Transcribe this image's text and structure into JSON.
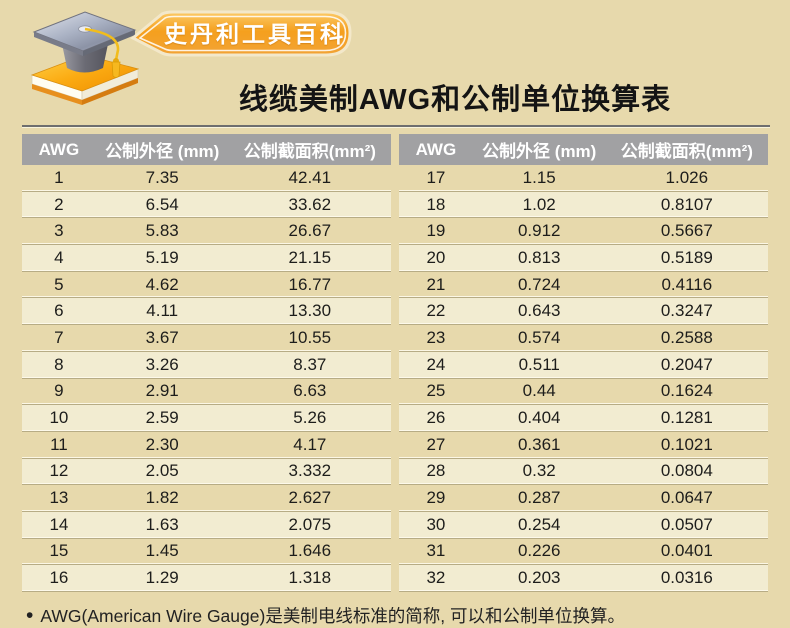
{
  "page": {
    "background_color": "#e7d9ac",
    "header_row_color": "#a1a1a3",
    "alt_row_color": "#f2ecd1",
    "badge_orange": "#f5a01e"
  },
  "header": {
    "brand_badge": "史丹利工具百科",
    "title": "线缆美制AWG和公制单位换算表",
    "logo": "book-with-graduation-cap-logo"
  },
  "columns": [
    "AWG",
    "公制外径 (mm)",
    "公制截面积(mm²)"
  ],
  "tables": [
    {
      "rows": [
        [
          "1",
          "7.35",
          "42.41"
        ],
        [
          "2",
          "6.54",
          "33.62"
        ],
        [
          "3",
          "5.83",
          "26.67"
        ],
        [
          "4",
          "5.19",
          "21.15"
        ],
        [
          "5",
          "4.62",
          "16.77"
        ],
        [
          "6",
          "4.11",
          "13.30"
        ],
        [
          "7",
          "3.67",
          "10.55"
        ],
        [
          "8",
          "3.26",
          "8.37"
        ],
        [
          "9",
          "2.91",
          "6.63"
        ],
        [
          "10",
          "2.59",
          "5.26"
        ],
        [
          "11",
          "2.30",
          "4.17"
        ],
        [
          "12",
          "2.05",
          "3.332"
        ],
        [
          "13",
          "1.82",
          "2.627"
        ],
        [
          "14",
          "1.63",
          "2.075"
        ],
        [
          "15",
          "1.45",
          "1.646"
        ],
        [
          "16",
          "1.29",
          "1.318"
        ]
      ]
    },
    {
      "rows": [
        [
          "17",
          "1.15",
          "1.026"
        ],
        [
          "18",
          "1.02",
          "0.8107"
        ],
        [
          "19",
          "0.912",
          "0.5667"
        ],
        [
          "20",
          "0.813",
          "0.5189"
        ],
        [
          "21",
          "0.724",
          "0.4116"
        ],
        [
          "22",
          "0.643",
          "0.3247"
        ],
        [
          "23",
          "0.574",
          "0.2588"
        ],
        [
          "24",
          "0.511",
          "0.2047"
        ],
        [
          "25",
          "0.44",
          "0.1624"
        ],
        [
          "26",
          "0.404",
          "0.1281"
        ],
        [
          "27",
          "0.361",
          "0.1021"
        ],
        [
          "28",
          "0.32",
          "0.0804"
        ],
        [
          "29",
          "0.287",
          "0.0647"
        ],
        [
          "30",
          "0.254",
          "0.0507"
        ],
        [
          "31",
          "0.226",
          "0.0401"
        ],
        [
          "32",
          "0.203",
          "0.0316"
        ]
      ]
    }
  ],
  "footnote": {
    "bullet": "•",
    "text": "AWG(American Wire Gauge)是美制电线标准的简称, 可以和公制单位换算。"
  }
}
